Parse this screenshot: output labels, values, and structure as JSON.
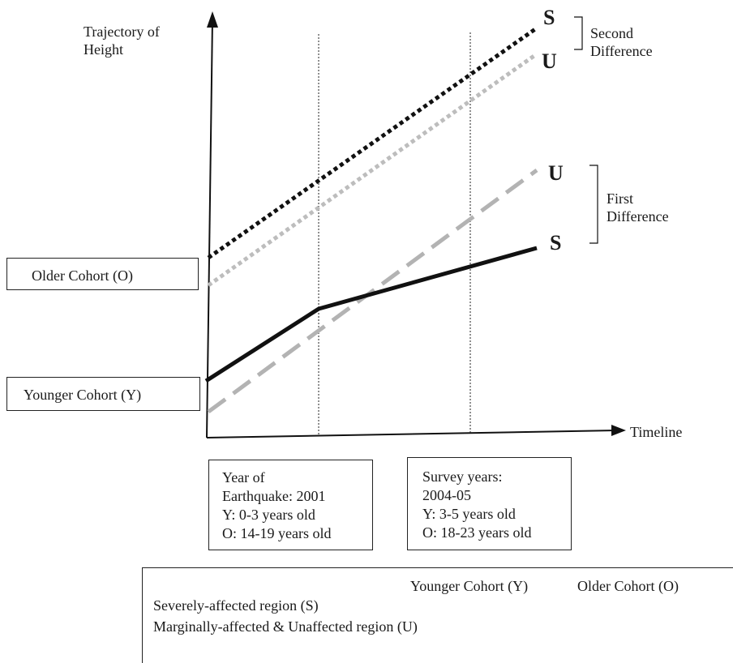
{
  "axes": {
    "y_label": "Trajectory of\nHeight",
    "x_label": "Timeline"
  },
  "cohort_boxes": {
    "older": "Older Cohort (O)",
    "younger": "Younger Cohort (Y)"
  },
  "line_end_labels": {
    "older_s": "S",
    "older_u": "U",
    "younger_u": "U",
    "younger_s": "S"
  },
  "brackets": {
    "second_difference": "Second\nDifference",
    "first_difference": "First\nDifference"
  },
  "event_boxes": {
    "earthquake": "Year of\nEarthquake: 2001\nY: 0-3 years old\nO: 14-19 years old",
    "survey": "Survey years:\n2004-05\nY: 3-5 years old\nO: 18-23 years old"
  },
  "legend": {
    "col_younger": "Younger Cohort (Y)",
    "col_older": "Older Cohort (O)",
    "row_severe": "Severely-affected region (S)",
    "row_marginal": "Marginally-affected & Unaffected region (U)"
  },
  "colors": {
    "severe": "#111111",
    "unaffected_younger": "#b3b3b3",
    "unaffected_older": "#bdbdbd"
  }
}
